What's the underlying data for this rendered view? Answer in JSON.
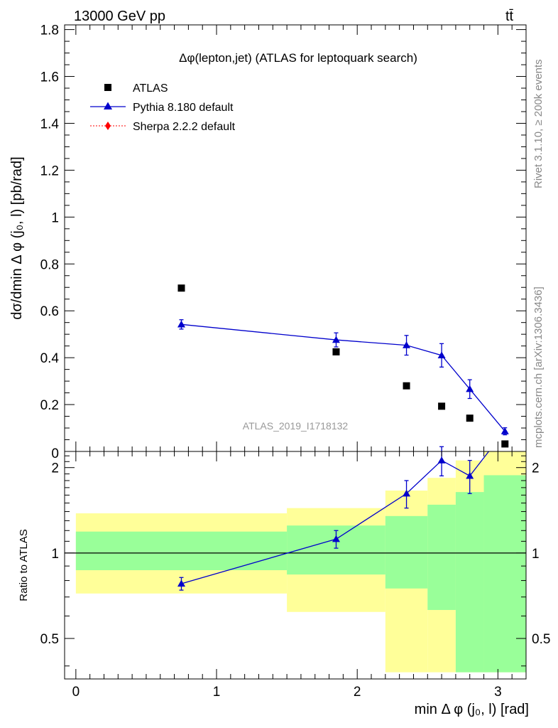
{
  "header": {
    "energy_label": "13000 GeV pp",
    "process_label": "tt̄"
  },
  "side_labels": {
    "rivet": "Rivet 3.1.10, ≥ 200k events",
    "mcplots": "mcplots.cern.ch [arXiv:1306.3436]"
  },
  "chart_data": [
    {
      "type": "scatter",
      "panel": "main",
      "title": "Δφ(lepton,jet) (ATLAS for leptoquark search)",
      "ylabel": "dσ/dmin Δ φ (j₀, l) [pb/rad]",
      "watermark": "ATLAS_2019_I1718132",
      "xlim": [
        -0.08,
        3.2
      ],
      "ylim": [
        0,
        1.82
      ],
      "yticks": [
        0.2,
        0.4,
        0.6,
        0.8,
        1,
        1.2,
        1.4,
        1.6,
        1.8
      ],
      "ytick_labels": [
        "0.2",
        "0.4",
        "0.6",
        "0.8",
        "1",
        "1.2",
        "1.4",
        "1.6",
        "1.8"
      ],
      "ybottom_label": "0",
      "legend_position": "top-left",
      "series": [
        {
          "name": "ATLAS",
          "color": "#000000",
          "marker": "square",
          "x": [
            0.75,
            1.85,
            2.35,
            2.6,
            2.8,
            3.05
          ],
          "y": [
            0.697,
            0.425,
            0.28,
            0.193,
            0.142,
            0.032
          ]
        },
        {
          "name": "Pythia 8.180 default",
          "color": "#0000cc",
          "marker": "triangle",
          "x": [
            0.75,
            1.85,
            2.35,
            2.6,
            2.8,
            3.05
          ],
          "y": [
            0.542,
            0.476,
            0.453,
            0.41,
            0.266,
            0.086
          ],
          "yerr": [
            0.02,
            0.03,
            0.042,
            0.05,
            0.04,
            0.015
          ]
        },
        {
          "name": "Sherpa 2.2.2 default",
          "color": "#ff0000",
          "marker": "diamond",
          "x": [],
          "y": []
        }
      ]
    },
    {
      "type": "line",
      "panel": "ratio",
      "ylabel": "Ratio to ATLAS",
      "xlabel": "min Δ φ (j₀, l) [rad]",
      "xlim": [
        -0.08,
        3.2
      ],
      "ylim": [
        0.36,
        2.28
      ],
      "xticks": [
        0,
        1,
        2,
        3
      ],
      "xtick_labels": [
        "0",
        "1",
        "2",
        "3"
      ],
      "yticks": [
        0.5,
        1,
        2
      ],
      "ytick_labels": [
        "0.5",
        "1",
        "2"
      ],
      "reference_line": 1,
      "uncertainty_bands": {
        "bin_edges": [
          0,
          1.5,
          2.2,
          2.5,
          2.7,
          2.9,
          3.2
        ],
        "outer": {
          "color": "#ffff99",
          "low": [
            0.72,
            0.62,
            0.38,
            0.38,
            0.38,
            0.38
          ],
          "high": [
            1.38,
            1.44,
            1.66,
            1.84,
            2.12,
            2.28
          ]
        },
        "inner": {
          "color": "#99ff99",
          "low": [
            0.87,
            0.84,
            0.75,
            0.63,
            0.38,
            0.38
          ],
          "high": [
            1.19,
            1.25,
            1.35,
            1.48,
            1.64,
            1.88
          ]
        }
      },
      "series": [
        {
          "name": "Pythia 8.180 default",
          "color": "#0000cc",
          "marker": "triangle",
          "x": [
            0.75,
            1.85,
            2.35,
            2.6,
            2.8,
            3.05
          ],
          "y": [
            0.78,
            1.12,
            1.62,
            2.12,
            1.87,
            2.7
          ],
          "yerr": [
            0.04,
            0.08,
            0.18,
            0.25,
            0.25,
            0
          ]
        }
      ]
    }
  ]
}
